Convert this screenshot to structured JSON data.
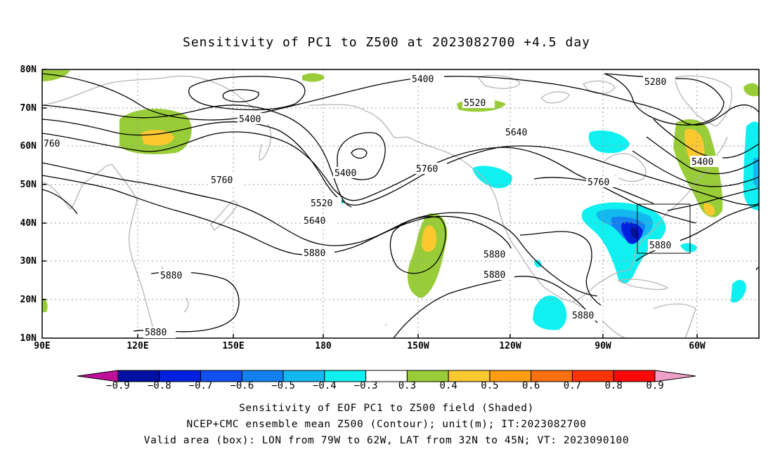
{
  "title": "Sensitivity of PC1 to Z500 at 2023082700 +4.5 day",
  "lat_labels": [
    "80N",
    "70N",
    "60N",
    "50N",
    "40N",
    "30N",
    "20N",
    "10N"
  ],
  "lon_labels": [
    "90E",
    "120E",
    "150E",
    "180",
    "150W",
    "120W",
    "90W",
    "60W"
  ],
  "contour_labels": {
    "c5400a": "5400",
    "c5280": "5280",
    "c5400b": "5400",
    "c5520a": "5520",
    "c5640a": "5640",
    "c760": "760",
    "c5400c": "5400",
    "c5760a": "5760",
    "c5760b": "5760",
    "c5520b": "5520",
    "c5640b": "5640",
    "c5880a": "5880",
    "c5400d": "5400",
    "c5760c": "5760",
    "c5880b": "5880",
    "c5880c": "5880",
    "c5880d": "5880",
    "c5880e": "5880",
    "c5880f": "5880"
  },
  "colorbar": {
    "colors": [
      "#c0109a",
      "#0010a0",
      "#0020e0",
      "#1050f0",
      "#1480f0",
      "#14b8f0",
      "#10f0f0",
      "#ffffff",
      "#98cc38",
      "#fcc830",
      "#fc9c10",
      "#fc7010",
      "#fc3408",
      "#f80808",
      "#f0a0c8"
    ],
    "labels": [
      "−0.9",
      "−0.8",
      "−0.7",
      "−0.6",
      "−0.5",
      "−0.4",
      "−0.3",
      "0.3",
      "0.4",
      "0.5",
      "0.6",
      "0.7",
      "0.8",
      "0.9"
    ]
  },
  "captions": [
    "Sensitivity of EOF PC1 to Z500 field (Shaded)",
    "NCEP+CMC ensemble mean Z500 (Contour); unit(m); IT:2023082700",
    "Valid area (box): LON from 79W to 62W, LAT from 32N to 45N; VT: 2023090100"
  ]
}
